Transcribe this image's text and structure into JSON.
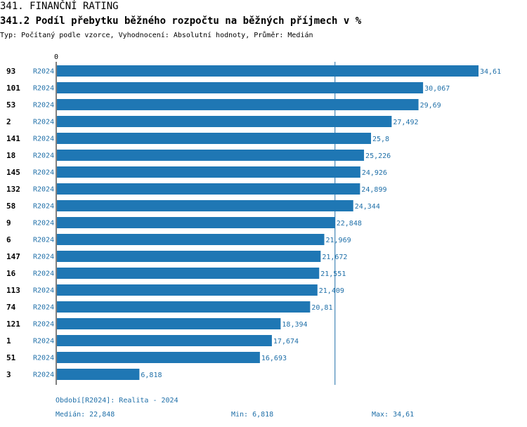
{
  "header": {
    "title": "341. FINANČNÍ RATING",
    "subtitle": "341.2 Podíl přebytku běžného rozpočtu na běžných příjmech v %",
    "meta": "Typ: Počítaný podle vzorce, Vyhodnocení: Absolutní hodnoty, Průměr: Medián"
  },
  "colors": {
    "bar": "#1f77b4",
    "accent_text": "#1f6fa8",
    "axis": "#000000",
    "median_line": "#1f6fa8"
  },
  "chart_data": {
    "type": "bar",
    "orientation": "horizontal",
    "x_tick_label": "0",
    "xlim": [
      0,
      34.61
    ],
    "median": 22.848,
    "categories": [
      "93",
      "101",
      "53",
      "2",
      "141",
      "18",
      "145",
      "132",
      "58",
      "9",
      "6",
      "147",
      "16",
      "113",
      "74",
      "121",
      "1",
      "51",
      "3"
    ],
    "period_labels": [
      "R2024",
      "R2024",
      "R2024",
      "R2024",
      "R2024",
      "R2024",
      "R2024",
      "R2024",
      "R2024",
      "R2024",
      "R2024",
      "R2024",
      "R2024",
      "R2024",
      "R2024",
      "R2024",
      "R2024",
      "R2024",
      "R2024"
    ],
    "values": [
      34.61,
      30.067,
      29.69,
      27.492,
      25.8,
      25.226,
      24.926,
      24.899,
      24.344,
      22.848,
      21.969,
      21.672,
      21.551,
      21.409,
      20.81,
      18.394,
      17.674,
      16.693,
      6.818
    ],
    "value_labels": [
      "34,61",
      "30,067",
      "29,69",
      "27,492",
      "25,8",
      "25,226",
      "24,926",
      "24,899",
      "24,344",
      "22,848",
      "21,969",
      "21,672",
      "21,551",
      "21,409",
      "20,81",
      "18,394",
      "17,674",
      "16,693",
      "6,818"
    ]
  },
  "footer": {
    "period": "Období[R2024]: Realita - 2024",
    "median": "Medián: 22,848",
    "min": "Min: 6,818",
    "max": "Max: 34,61"
  }
}
